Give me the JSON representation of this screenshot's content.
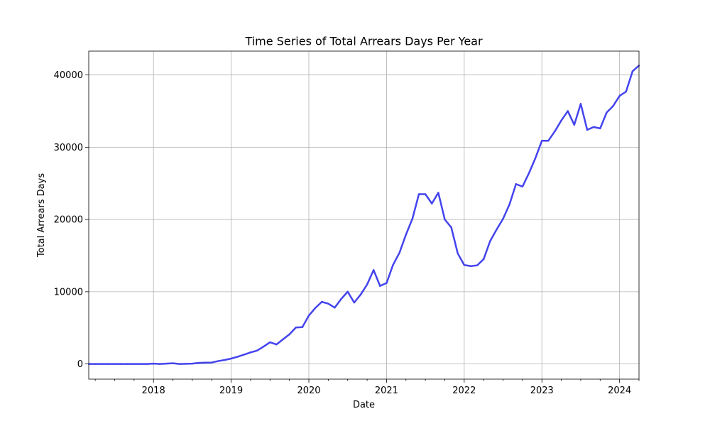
{
  "chart_data": {
    "type": "line",
    "title": "Time Series of Total Arrears Days Per Year",
    "xlabel": "Date",
    "ylabel": "Total Arrears Days",
    "xlim": [
      "2017-03",
      "2024-04"
    ],
    "ylim": [
      -2100,
      43300
    ],
    "grid": true,
    "line_color": "#4444ee",
    "x_ticks": [
      {
        "label": "2018",
        "date": "2018-01"
      },
      {
        "label": "2019",
        "date": "2019-01"
      },
      {
        "label": "2020",
        "date": "2020-01"
      },
      {
        "label": "2021",
        "date": "2021-01"
      },
      {
        "label": "2022",
        "date": "2022-01"
      },
      {
        "label": "2023",
        "date": "2023-01"
      },
      {
        "label": "2024",
        "date": "2024-01"
      }
    ],
    "y_ticks": [
      {
        "label": "0",
        "value": 0
      },
      {
        "label": "10000",
        "value": 10000
      },
      {
        "label": "20000",
        "value": 20000
      },
      {
        "label": "30000",
        "value": 30000
      },
      {
        "label": "40000",
        "value": 40000
      }
    ],
    "series": [
      {
        "points": [
          [
            "2017-03",
            0
          ],
          [
            "2017-04",
            0
          ],
          [
            "2017-05",
            0
          ],
          [
            "2017-06",
            0
          ],
          [
            "2017-07",
            0
          ],
          [
            "2017-08",
            0
          ],
          [
            "2017-09",
            0
          ],
          [
            "2017-10",
            0
          ],
          [
            "2017-11",
            0
          ],
          [
            "2017-12",
            0
          ],
          [
            "2018-01",
            50
          ],
          [
            "2018-02",
            0
          ],
          [
            "2018-03",
            50
          ],
          [
            "2018-04",
            100
          ],
          [
            "2018-05",
            0
          ],
          [
            "2018-06",
            30
          ],
          [
            "2018-07",
            50
          ],
          [
            "2018-08",
            150
          ],
          [
            "2018-09",
            180
          ],
          [
            "2018-10",
            200
          ],
          [
            "2018-11",
            400
          ],
          [
            "2018-12",
            550
          ],
          [
            "2019-01",
            750
          ],
          [
            "2019-02",
            1000
          ],
          [
            "2019-03",
            1300
          ],
          [
            "2019-04",
            1600
          ],
          [
            "2019-05",
            1850
          ],
          [
            "2019-06",
            2400
          ],
          [
            "2019-07",
            3000
          ],
          [
            "2019-08",
            2700
          ],
          [
            "2019-09",
            3400
          ],
          [
            "2019-10",
            4100
          ],
          [
            "2019-11",
            5050
          ],
          [
            "2019-12",
            5100
          ],
          [
            "2020-01",
            6700
          ],
          [
            "2020-02",
            7750
          ],
          [
            "2020-03",
            8600
          ],
          [
            "2020-04",
            8350
          ],
          [
            "2020-05",
            7800
          ],
          [
            "2020-06",
            9000
          ],
          [
            "2020-07",
            10000
          ],
          [
            "2020-08",
            8500
          ],
          [
            "2020-09",
            9600
          ],
          [
            "2020-10",
            11000
          ],
          [
            "2020-11",
            13000
          ],
          [
            "2020-12",
            10800
          ],
          [
            "2021-01",
            11200
          ],
          [
            "2021-02",
            13700
          ],
          [
            "2021-03",
            15400
          ],
          [
            "2021-04",
            17900
          ],
          [
            "2021-05",
            20100
          ],
          [
            "2021-06",
            23500
          ],
          [
            "2021-07",
            23500
          ],
          [
            "2021-08",
            22200
          ],
          [
            "2021-09",
            23700
          ],
          [
            "2021-10",
            20000
          ],
          [
            "2021-11",
            18900
          ],
          [
            "2021-12",
            15300
          ],
          [
            "2022-01",
            13700
          ],
          [
            "2022-02",
            13550
          ],
          [
            "2022-03",
            13650
          ],
          [
            "2022-04",
            14500
          ],
          [
            "2022-05",
            17000
          ],
          [
            "2022-06",
            18600
          ],
          [
            "2022-07",
            20100
          ],
          [
            "2022-08",
            22100
          ],
          [
            "2022-09",
            24900
          ],
          [
            "2022-10",
            24550
          ],
          [
            "2022-11",
            26400
          ],
          [
            "2022-12",
            28500
          ],
          [
            "2023-01",
            30900
          ],
          [
            "2023-02",
            30900
          ],
          [
            "2023-03",
            32200
          ],
          [
            "2023-04",
            33700
          ],
          [
            "2023-05",
            35000
          ],
          [
            "2023-06",
            33100
          ],
          [
            "2023-07",
            36000
          ],
          [
            "2023-08",
            32400
          ],
          [
            "2023-09",
            32800
          ],
          [
            "2023-10",
            32600
          ],
          [
            "2023-11",
            34800
          ],
          [
            "2023-12",
            35700
          ],
          [
            "2024-01",
            37100
          ],
          [
            "2024-02",
            37700
          ],
          [
            "2024-03",
            40500
          ],
          [
            "2024-04",
            41300
          ]
        ]
      }
    ]
  }
}
